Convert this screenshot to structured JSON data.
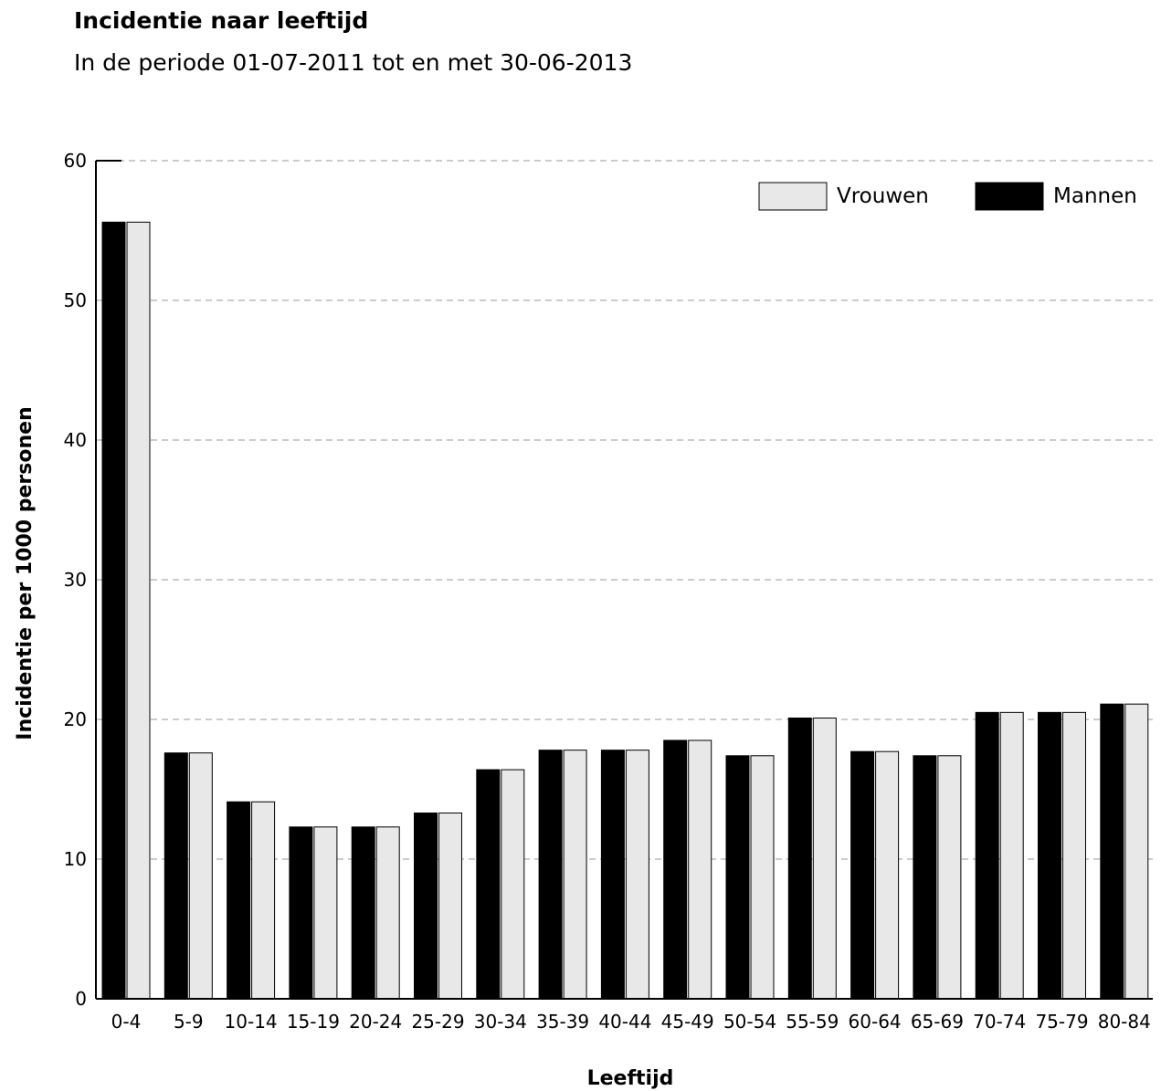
{
  "header": {
    "title": "Incidentie naar leeftijd",
    "subtitle": "In de periode 01-07-2011 tot en met 30-06-2013"
  },
  "chart_data": {
    "type": "bar",
    "title": "Incidentie naar leeftijd",
    "subtitle": "In de periode 01-07-2011 tot en met 30-06-2013",
    "xlabel": "Leeftijd",
    "ylabel": "Incidentie per 1000 personen",
    "ylim": [
      0,
      60
    ],
    "yticks": [
      0,
      10,
      20,
      30,
      40,
      50,
      60
    ],
    "grid": true,
    "legend_position": "top-right",
    "categories": [
      "0-4",
      "5-9",
      "10-14",
      "15-19",
      "20-24",
      "25-29",
      "30-34",
      "35-39",
      "40-44",
      "45-49",
      "50-54",
      "55-59",
      "60-64",
      "65-69",
      "70-74",
      "75-79",
      "80-84"
    ],
    "series": [
      {
        "name": "Mannen",
        "color": "#000000",
        "values": [
          55.6,
          17.6,
          14.1,
          12.3,
          12.3,
          13.3,
          16.4,
          17.8,
          17.8,
          18.5,
          17.4,
          20.1,
          17.7,
          17.4,
          20.5,
          20.5,
          21.1
        ]
      },
      {
        "name": "Vrouwen",
        "color": "#e8e8e8",
        "values": [
          55.6,
          17.6,
          14.1,
          12.3,
          12.3,
          13.3,
          16.4,
          17.8,
          17.8,
          18.5,
          17.4,
          20.1,
          17.7,
          17.4,
          20.5,
          20.5,
          21.1
        ]
      }
    ]
  }
}
